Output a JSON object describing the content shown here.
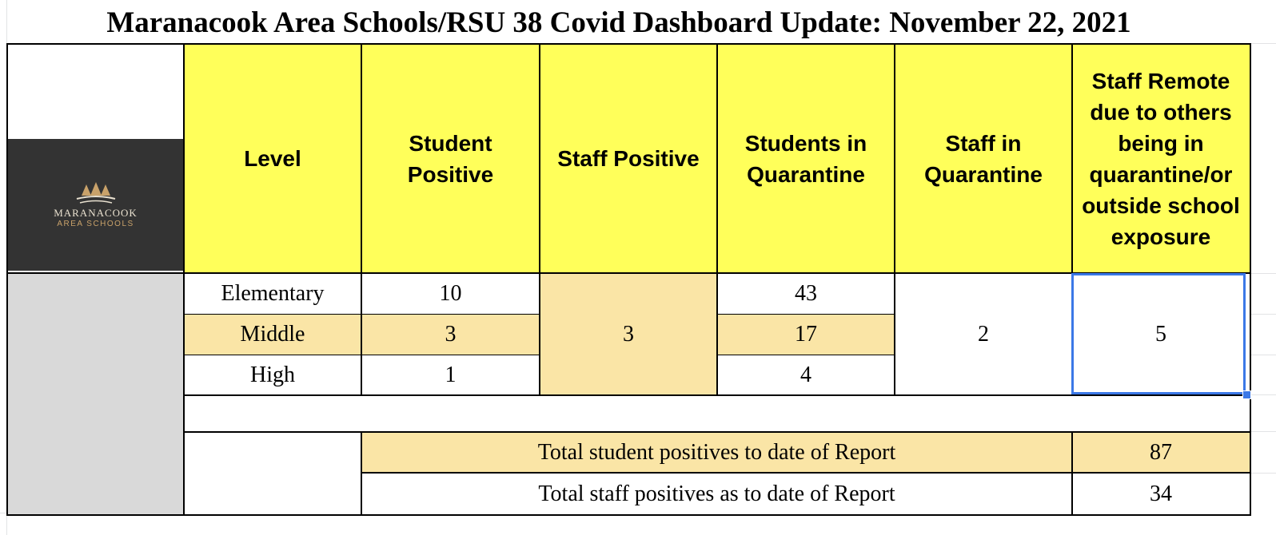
{
  "title": "Maranacook Area Schools/RSU 38 Covid Dashboard Update: November 22, 2021",
  "logo": {
    "icon": "pine-trees-icon",
    "name": "MARANACOOK",
    "subtitle": "AREA SCHOOLS"
  },
  "headers": {
    "level": "Level",
    "student_positive": "Student Positive",
    "staff_positive": "Staff Positive",
    "students_quarantine": "Students in Quarantine",
    "staff_quarantine": "Staff in Quarantine",
    "staff_remote": "Staff Remote due to others being in quarantine/or outside school exposure"
  },
  "rows": [
    {
      "level": "Elementary",
      "student_positive": "10",
      "students_quarantine": "43"
    },
    {
      "level": "Middle",
      "student_positive": "3",
      "students_quarantine": "17"
    },
    {
      "level": "High",
      "student_positive": "1",
      "students_quarantine": "4"
    }
  ],
  "merged": {
    "staff_positive": "3",
    "staff_quarantine": "2",
    "staff_remote": "5"
  },
  "totals": [
    {
      "label": "Total student positives to date of Report",
      "value": "87"
    },
    {
      "label": "Total staff positives as to date of Report",
      "value": "34"
    }
  ],
  "colors": {
    "header_yellow": "#ffff5a",
    "row_tan": "#fae5a6",
    "logo_bg": "#333333",
    "side_gray": "#d9d9d9",
    "selection_blue": "#3b78e7"
  }
}
